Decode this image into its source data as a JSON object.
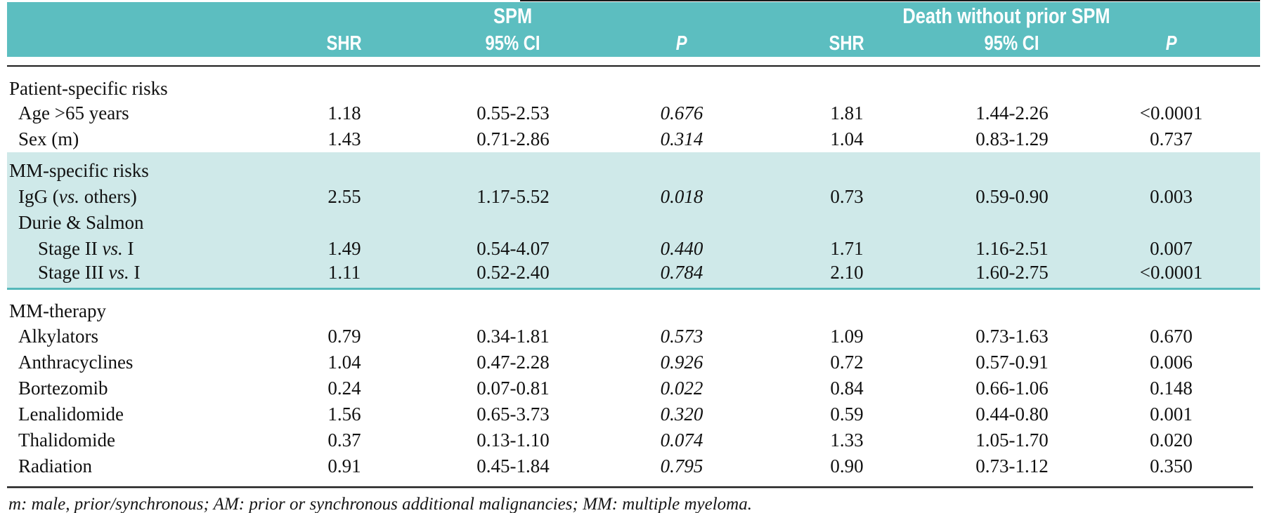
{
  "colors": {
    "header_bg": "#5cbec0",
    "section_highlight_bg": "#cfe9e9",
    "section_divider": "#56b8ba",
    "rule": "#1b1b1b",
    "header_text": "#ffffff",
    "body_text": "#111111"
  },
  "header": {
    "groups": [
      {
        "label": "SPM"
      },
      {
        "label": "Death without prior SPM"
      }
    ],
    "columns": [
      "SHR",
      "95% CI",
      "P",
      "SHR",
      "95% CI",
      "P"
    ]
  },
  "rows": [
    {
      "type": "section",
      "bg": "white",
      "label": "Patient-specific risks",
      "cells": [
        "",
        "",
        "",
        "",
        "",
        ""
      ]
    },
    {
      "type": "item",
      "bg": "white",
      "label": "Age >65 years",
      "cells": [
        "1.18",
        "0.55-2.53",
        "0.676",
        "1.81",
        "1.44-2.26",
        "<0.0001"
      ]
    },
    {
      "type": "item",
      "bg": "white",
      "label": "Sex (m)",
      "cells": [
        "1.43",
        "0.71-2.86",
        "0.314",
        "1.04",
        "0.83-1.29",
        "0.737"
      ]
    },
    {
      "type": "section",
      "bg": "teal",
      "label": "MM-specific risks",
      "cells": [
        "",
        "",
        "",
        "",
        "",
        ""
      ]
    },
    {
      "type": "item",
      "bg": "teal",
      "label_prefix": "IgG (",
      "label_italic": "vs.",
      "label_suffix": " others)",
      "cells": [
        "2.55",
        "1.17-5.52",
        "0.018",
        "0.73",
        "0.59-0.90",
        "0.003"
      ]
    },
    {
      "type": "item",
      "bg": "teal",
      "label": "Durie & Salmon",
      "cells": [
        "",
        "",
        "",
        "",
        "",
        ""
      ]
    },
    {
      "type": "subitem",
      "bg": "teal",
      "label_prefix": "Stage II ",
      "label_italic": "vs.",
      "label_suffix": " I",
      "cells": [
        "1.49",
        "0.54-4.07",
        "0.440",
        "1.71",
        "1.16-2.51",
        "0.007"
      ]
    },
    {
      "type": "subitem",
      "bg": "teal",
      "label_prefix": "Stage III ",
      "label_italic": "vs.",
      "label_suffix": " I",
      "cells": [
        "1.11",
        "0.52-2.40",
        "0.784",
        "2.10",
        "1.60-2.75",
        "<0.0001"
      ]
    },
    {
      "type": "section",
      "bg": "white",
      "label": "MM-therapy",
      "cells": [
        "",
        "",
        "",
        "",
        "",
        ""
      ]
    },
    {
      "type": "item",
      "bg": "white",
      "label": "Alkylators",
      "cells": [
        "0.79",
        "0.34-1.81",
        "0.573",
        "1.09",
        "0.73-1.63",
        "0.670"
      ]
    },
    {
      "type": "item",
      "bg": "white",
      "label": "Anthracyclines",
      "cells": [
        "1.04",
        "0.47-2.28",
        "0.926",
        "0.72",
        "0.57-0.91",
        "0.006"
      ]
    },
    {
      "type": "item",
      "bg": "white",
      "label": "Bortezomib",
      "cells": [
        "0.24",
        "0.07-0.81",
        "0.022",
        "0.84",
        "0.66-1.06",
        "0.148"
      ]
    },
    {
      "type": "item",
      "bg": "white",
      "label": "Lenalidomide",
      "cells": [
        "1.56",
        "0.65-3.73",
        "0.320",
        "0.59",
        "0.44-0.80",
        "0.001"
      ]
    },
    {
      "type": "item",
      "bg": "white",
      "label": "Thalidomide",
      "cells": [
        "0.37",
        "0.13-1.10",
        "0.074",
        "1.33",
        "1.05-1.70",
        "0.020"
      ]
    },
    {
      "type": "item",
      "bg": "white",
      "label": "Radiation",
      "cells": [
        "0.91",
        "0.45-1.84",
        "0.795",
        "0.90",
        "0.73-1.12",
        "0.350"
      ]
    }
  ],
  "footnote": "m: male, prior/synchronous; AM: prior or synchronous additional malignancies; MM: multiple myeloma."
}
